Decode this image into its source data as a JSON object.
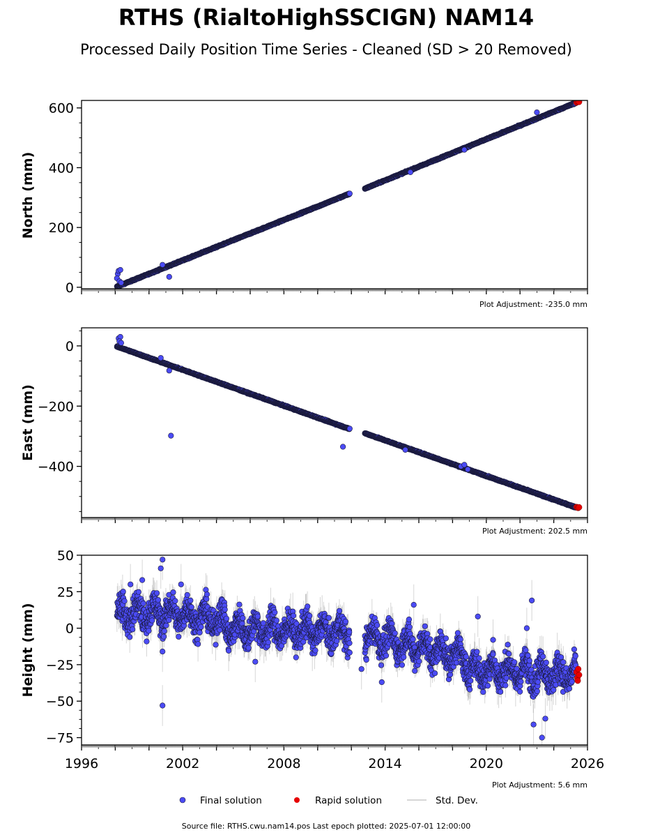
{
  "figure": {
    "title": "RTHS (RialtoHighSSCIGN) NAM14",
    "subtitle": "Processed Daily Position Time Series - Cleaned (SD > 20 Removed)",
    "source_note": "Source file: RTHS.cwu.nam14.pos  Last epoch plotted: 2025-07-01 12:00:00",
    "colors": {
      "final": "#4b4bf5",
      "final_edge": "#1a1a3a",
      "rapid": "#e60000",
      "stddev": "#b0b0b0"
    }
  },
  "legend": {
    "placement": "bottom-center",
    "final_label": "Final solution",
    "rapid_label": "Rapid solution",
    "stddev_label": "Std. Dev."
  },
  "chart_data": [
    {
      "type": "scatter",
      "ylabel": "North (mm)",
      "adjustment": "Plot Adjustment: -235.0 mm",
      "xlim": [
        1996,
        2026
      ],
      "ylim": [
        -5,
        625
      ],
      "yticks": [
        0,
        200,
        400,
        600
      ],
      "ytick_labels": [
        "0",
        "200",
        "400",
        "600"
      ],
      "x_tick_labels_shown": false,
      "series": [
        {
          "kind": "final",
          "segments": [
            {
              "x0": 1998.1,
              "y0": 2,
              "x1": 2011.9,
              "y1": 313
            },
            {
              "x0": 2012.8,
              "y0": 330,
              "x1": 2025.3,
              "y1": 617
            }
          ],
          "spread": 3,
          "errbar": 0,
          "extras": [
            {
              "x": 1998.15,
              "y": 45
            },
            {
              "x": 1998.2,
              "y": 55
            },
            {
              "x": 1998.3,
              "y": 58
            },
            {
              "x": 1998.1,
              "y": 30
            },
            {
              "x": 1998.25,
              "y": 20
            },
            {
              "x": 1998.35,
              "y": 15
            },
            {
              "x": 2001.2,
              "y": 35
            },
            {
              "x": 2000.8,
              "y": 75
            },
            {
              "x": 2015.5,
              "y": 385
            },
            {
              "x": 2023.0,
              "y": 585
            },
            {
              "x": 2018.7,
              "y": 460
            }
          ]
        },
        {
          "kind": "rapid",
          "points": [
            {
              "x": 2025.35,
              "y": 618
            },
            {
              "x": 2025.4,
              "y": 620
            },
            {
              "x": 2025.45,
              "y": 621
            },
            {
              "x": 2025.5,
              "y": 620
            }
          ]
        }
      ]
    },
    {
      "type": "scatter",
      "ylabel": "East (mm)",
      "adjustment": "Plot Adjustment: 202.5 mm",
      "xlim": [
        1996,
        2026
      ],
      "ylim": [
        -570,
        60
      ],
      "yticks": [
        0,
        -200,
        -400
      ],
      "ytick_labels": [
        "0",
        "−200",
        "−400"
      ],
      "x_tick_labels_shown": false,
      "series": [
        {
          "kind": "final",
          "segments": [
            {
              "x0": 1998.1,
              "y0": -2,
              "x1": 2011.9,
              "y1": -276
            },
            {
              "x0": 2012.8,
              "y0": -290,
              "x1": 2025.3,
              "y1": -536
            }
          ],
          "spread": 3,
          "errbar": 0,
          "extras": [
            {
              "x": 1998.2,
              "y": 25
            },
            {
              "x": 1998.3,
              "y": 30
            },
            {
              "x": 1998.25,
              "y": 15
            },
            {
              "x": 1998.35,
              "y": 10
            },
            {
              "x": 2001.3,
              "y": -298
            },
            {
              "x": 2011.5,
              "y": -335
            },
            {
              "x": 2000.7,
              "y": -40
            },
            {
              "x": 2001.2,
              "y": -82
            },
            {
              "x": 2018.5,
              "y": -400
            },
            {
              "x": 2018.9,
              "y": -410
            },
            {
              "x": 2018.7,
              "y": -395
            },
            {
              "x": 2015.2,
              "y": -345
            }
          ]
        },
        {
          "kind": "rapid",
          "points": [
            {
              "x": 2025.35,
              "y": -535
            },
            {
              "x": 2025.4,
              "y": -537
            },
            {
              "x": 2025.45,
              "y": -538
            },
            {
              "x": 2025.5,
              "y": -536
            }
          ]
        }
      ]
    },
    {
      "type": "scatter",
      "ylabel": "Height (mm)",
      "adjustment": "Plot Adjustment: 5.6 mm",
      "xlim": [
        1996,
        2026
      ],
      "ylim": [
        -80,
        50
      ],
      "yticks": [
        50,
        25,
        0,
        -25,
        -50,
        -75
      ],
      "ytick_labels": [
        "50",
        "25",
        "0",
        "−25",
        "−50",
        "−75"
      ],
      "x_tick_labels_shown": true,
      "xticks": [
        1996,
        2002,
        2008,
        2014,
        2020,
        2026
      ],
      "xtick_labels": [
        "1996",
        "2002",
        "2008",
        "2014",
        "2020",
        "2026"
      ],
      "series": [
        {
          "kind": "final",
          "segments": [
            {
              "x0": 1998.1,
              "y0": 10,
              "x1": 2001.5,
              "y1": 10
            },
            {
              "x0": 2001.5,
              "y0": 10,
              "x1": 2004.5,
              "y1": 5
            },
            {
              "x0": 2004.5,
              "y0": 0,
              "x1": 2011.9,
              "y1": -3
            },
            {
              "x0": 2012.8,
              "y0": -5,
              "x1": 2018.8,
              "y1": -20
            },
            {
              "x0": 2018.8,
              "y0": -28,
              "x1": 2025.3,
              "y1": -32
            }
          ],
          "spread": 18,
          "errbar": 10,
          "extras": [
            {
              "x": 2000.8,
              "y": 47
            },
            {
              "x": 2000.7,
              "y": 41
            },
            {
              "x": 2000.8,
              "y": -53
            },
            {
              "x": 2000.8,
              "y": -16
            },
            {
              "x": 1999.6,
              "y": 33
            },
            {
              "x": 2001.9,
              "y": 30
            },
            {
              "x": 1998.9,
              "y": 30
            },
            {
              "x": 2006.3,
              "y": -23
            },
            {
              "x": 2012.6,
              "y": -28
            },
            {
              "x": 2013.8,
              "y": -37
            },
            {
              "x": 2015.7,
              "y": 16
            },
            {
              "x": 2022.7,
              "y": 19
            },
            {
              "x": 2022.4,
              "y": 0
            },
            {
              "x": 2023.3,
              "y": -75
            },
            {
              "x": 2022.8,
              "y": -66
            },
            {
              "x": 2023.5,
              "y": -62
            },
            {
              "x": 2019.5,
              "y": 8
            },
            {
              "x": 2020.4,
              "y": -8
            }
          ]
        },
        {
          "kind": "rapid",
          "points": [
            {
              "x": 2025.35,
              "y": -30
            },
            {
              "x": 2025.4,
              "y": -34
            },
            {
              "x": 2025.45,
              "y": -28
            },
            {
              "x": 2025.5,
              "y": -32
            },
            {
              "x": 2025.42,
              "y": -36
            }
          ]
        }
      ]
    }
  ]
}
